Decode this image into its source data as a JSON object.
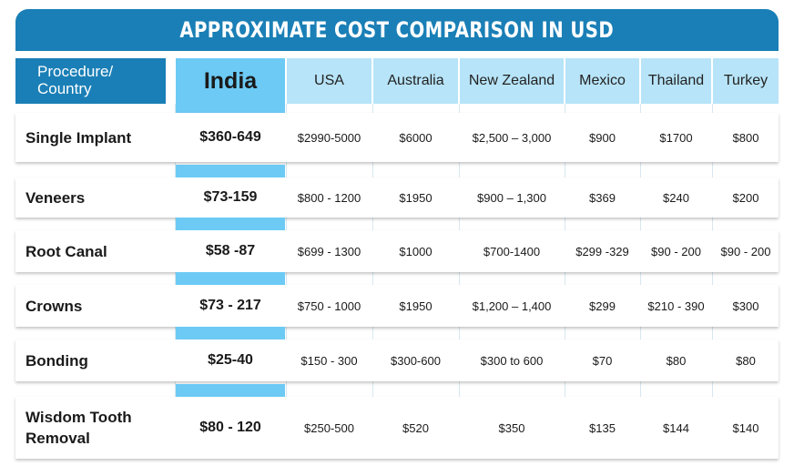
{
  "title": "APPROXIMATE COST COMPARISON IN USD",
  "header": {
    "procedure_label": "Procedure/\nCountry",
    "countries": [
      "India",
      "USA",
      "Australia",
      "New Zealand",
      "Mexico",
      "Thailand",
      "Turkey"
    ]
  },
  "rows": [
    {
      "procedure": "Single Implant",
      "values": [
        "$360-649",
        "$2990-5000",
        "$6000",
        "$2,500 – 3,000",
        "$900",
        "$1700",
        "$800"
      ]
    },
    {
      "procedure": "Veneers",
      "values": [
        "$73-159",
        "$800 - 1200",
        "$1950",
        "$900 – 1,300",
        "$369",
        "$240",
        "$200"
      ]
    },
    {
      "procedure": "Root Canal",
      "values": [
        "$58 -87",
        "$699 - 1300",
        "$1000",
        "$700-1400",
        "$299 -329",
        "$90 - 200",
        "$90 - 200"
      ]
    },
    {
      "procedure": "Crowns",
      "values": [
        "$73 - 217",
        "$750 - 1000",
        "$1950",
        "$1,200 – 1,400",
        "$299",
        "$210 - 390",
        "$300"
      ]
    },
    {
      "procedure": "Bonding",
      "values": [
        "$25-40",
        "$150 - 300",
        "$300-600",
        "$300 to 600",
        "$70",
        "$80",
        "$80"
      ]
    },
    {
      "procedure": "Wisdom Tooth\nRemoval",
      "values": [
        "$80 - 120",
        "$250-500",
        "$520",
        "$350",
        "$135",
        "$144",
        "$140"
      ]
    }
  ],
  "colors": {
    "title_bg": "#1a7fb6",
    "india_bg": "#6ccaf5",
    "country_header_bg": "#b7e4f8"
  }
}
